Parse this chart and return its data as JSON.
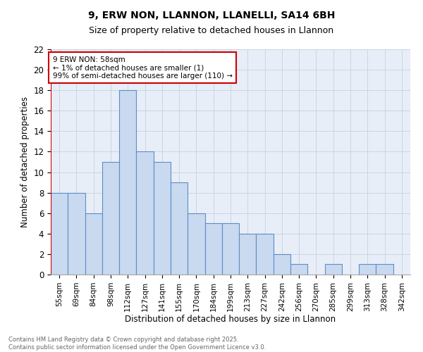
{
  "title_line1": "9, ERW NON, LLANNON, LLANELLI, SA14 6BH",
  "title_line2": "Size of property relative to detached houses in Llannon",
  "xlabel": "Distribution of detached houses by size in Llannon",
  "ylabel": "Number of detached properties",
  "categories": [
    "55sqm",
    "69sqm",
    "84sqm",
    "98sqm",
    "112sqm",
    "127sqm",
    "141sqm",
    "155sqm",
    "170sqm",
    "184sqm",
    "199sqm",
    "213sqm",
    "227sqm",
    "242sqm",
    "256sqm",
    "270sqm",
    "285sqm",
    "299sqm",
    "313sqm",
    "328sqm",
    "342sqm"
  ],
  "values": [
    8,
    8,
    6,
    11,
    18,
    12,
    11,
    9,
    6,
    5,
    5,
    4,
    4,
    2,
    1,
    0,
    1,
    0,
    1,
    1,
    0
  ],
  "bar_color": "#c8d9f0",
  "bar_edge_color": "#5b8ec4",
  "annotation_text": "9 ERW NON: 58sqm\n← 1% of detached houses are smaller (1)\n99% of semi-detached houses are larger (110) →",
  "annotation_box_color": "#ffffff",
  "annotation_box_edge_color": "#cc0000",
  "ylim": [
    0,
    22
  ],
  "yticks": [
    0,
    2,
    4,
    6,
    8,
    10,
    12,
    14,
    16,
    18,
    20,
    22
  ],
  "vline_color": "#cc0000",
  "grid_color": "#c8d0e0",
  "background_color": "#e8eef8",
  "footer_line1": "Contains HM Land Registry data © Crown copyright and database right 2025.",
  "footer_line2": "Contains public sector information licensed under the Open Government Licence v3.0.",
  "footer_color": "#666666"
}
